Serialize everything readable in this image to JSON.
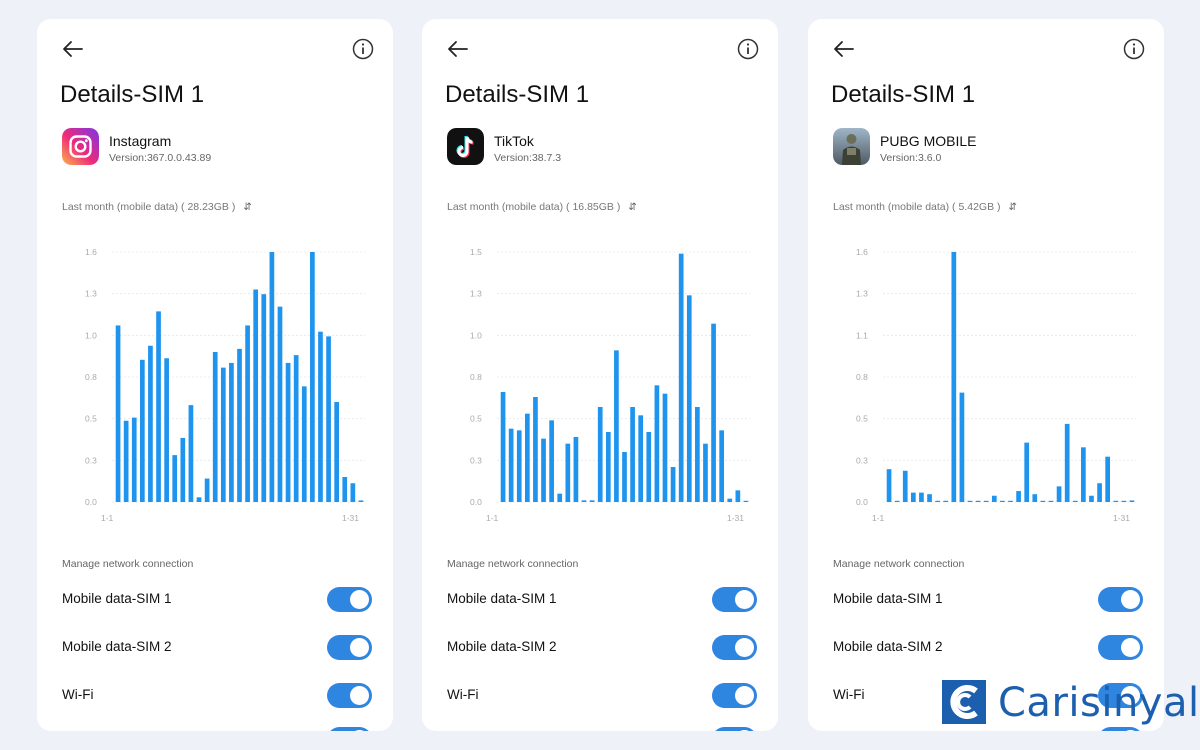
{
  "colors": {
    "bar": "#1f94ee",
    "toggle_on": "#2f86e0",
    "grid": "#e6e6e6",
    "tick": "#aaaaaa",
    "watermark": "#1c5fae"
  },
  "watermark": {
    "text": "Carisinyal"
  },
  "panels": [
    {
      "title": "Details-SIM 1",
      "app": {
        "name": "Instagram",
        "version": "Version:367.0.0.43.89",
        "icon": "instagram-icon"
      },
      "period": "Last month (mobile data) ( 28.23GB )",
      "section": "Manage network connection",
      "rows": [
        {
          "label": "Mobile data-SIM 1",
          "on": true
        },
        {
          "label": "Mobile data-SIM 2",
          "on": true
        },
        {
          "label": "Wi-Fi",
          "on": true
        },
        {
          "label": "",
          "on": true
        }
      ],
      "chart_data": {
        "type": "bar",
        "x_start_label": "1-1",
        "x_end_label": "1-31",
        "yticks": [
          "0.0",
          "0.3",
          "0.5",
          "0.8",
          "1.0",
          "1.3",
          "1.6"
        ],
        "ylim": [
          0,
          1.6
        ],
        "values": [
          1.13,
          0.52,
          0.54,
          0.91,
          1.0,
          1.22,
          0.92,
          0.3,
          0.41,
          0.62,
          0.03,
          0.15,
          0.96,
          0.86,
          0.89,
          0.98,
          1.13,
          1.36,
          1.33,
          1.6,
          1.25,
          0.89,
          0.94,
          0.74,
          1.6,
          1.09,
          1.06,
          0.64,
          0.16,
          0.12,
          0.01
        ]
      }
    },
    {
      "title": "Details-SIM 1",
      "app": {
        "name": "TikTok",
        "version": "Version:38.7.3",
        "icon": "tiktok-icon"
      },
      "period": "Last month (mobile data) ( 16.85GB )",
      "section": "Manage network connection",
      "rows": [
        {
          "label": "Mobile data-SIM 1",
          "on": true
        },
        {
          "label": "Mobile data-SIM 2",
          "on": true
        },
        {
          "label": "Wi-Fi",
          "on": true
        },
        {
          "label": "",
          "on": true
        }
      ],
      "chart_data": {
        "type": "bar",
        "x_start_label": "1-1",
        "x_end_label": "1-31",
        "yticks": [
          "0.0",
          "0.3",
          "0.5",
          "0.8",
          "1.0",
          "1.3",
          "1.5"
        ],
        "ylim": [
          0,
          1.5
        ],
        "values": [
          0.66,
          0.44,
          0.43,
          0.53,
          0.63,
          0.38,
          0.49,
          0.05,
          0.35,
          0.39,
          0.01,
          0.01,
          0.57,
          0.42,
          0.91,
          0.3,
          0.57,
          0.52,
          0.42,
          0.7,
          0.65,
          0.21,
          1.49,
          1.24,
          0.57,
          0.35,
          1.07,
          0.43,
          0.02,
          0.07,
          0.0
        ]
      }
    },
    {
      "title": "Details-SIM 1",
      "app": {
        "name": "PUBG MOBILE",
        "version": "Version:3.6.0",
        "icon": "pubg-icon"
      },
      "period": "Last month (mobile data) ( 5.42GB )",
      "section": "Manage network connection",
      "rows": [
        {
          "label": "Mobile data-SIM 1",
          "on": true
        },
        {
          "label": "Mobile data-SIM 2",
          "on": true
        },
        {
          "label": "Wi-Fi",
          "on": true
        },
        {
          "label": "",
          "on": true
        }
      ],
      "chart_data": {
        "type": "bar",
        "x_start_label": "1-1",
        "x_end_label": "1-31",
        "yticks": [
          "0.0",
          "0.3",
          "0.5",
          "0.8",
          "1.1",
          "1.3",
          "1.6"
        ],
        "ylim": [
          0,
          1.6
        ],
        "values": [
          0.21,
          0.0,
          0.2,
          0.06,
          0.06,
          0.05,
          0.0,
          0.0,
          1.6,
          0.7,
          0.0,
          0.0,
          0.0,
          0.04,
          0.0,
          0.0,
          0.07,
          0.38,
          0.05,
          0.0,
          0.0,
          0.1,
          0.5,
          0.0,
          0.35,
          0.04,
          0.12,
          0.29,
          0.0,
          0.0,
          0.01
        ]
      }
    }
  ]
}
